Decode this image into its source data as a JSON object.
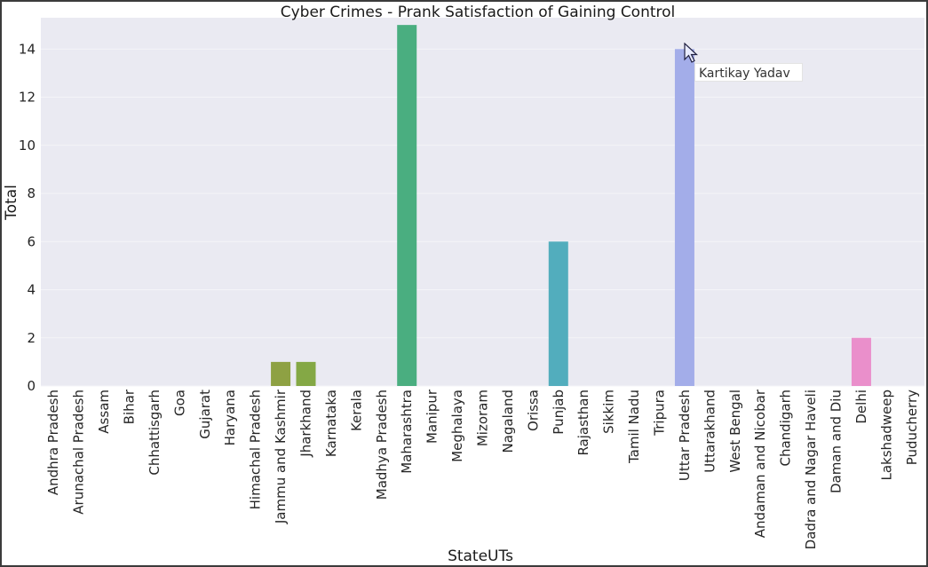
{
  "chart_data": {
    "type": "bar",
    "title": "Cyber Crimes - Prank Satisfaction of Gaining Control",
    "xlabel": "StateUTs",
    "ylabel": "Total",
    "ylim": [
      0,
      15.3
    ],
    "yticks": [
      0,
      2,
      4,
      6,
      8,
      10,
      12,
      14
    ],
    "grid": true,
    "categories": [
      "Andhra Pradesh",
      "Arunachal Pradesh",
      "Assam",
      "Bihar",
      "Chhattisgarh",
      "Goa",
      "Gujarat",
      "Haryana",
      "Himachal Pradesh",
      "Jammu and Kashmir",
      "Jharkhand",
      "Karnataka",
      "Kerala",
      "Madhya Pradesh",
      "Maharashtra",
      "Manipur",
      "Meghalaya",
      "Mizoram",
      "Nagaland",
      "Orissa",
      "Punjab",
      "Rajasthan",
      "Sikkim",
      "Tamil Nadu",
      "Tripura",
      "Uttar Pradesh",
      "Uttarakhand",
      "West Bengal",
      "Andaman and Nicobar",
      "Chandigarh",
      "Dadra and Nagar Haveli",
      "Daman and Diu",
      "Delhi",
      "Lakshadweep",
      "Puducherry"
    ],
    "values": [
      0,
      0,
      0,
      0,
      0,
      0,
      0,
      0,
      0,
      1,
      1,
      0,
      0,
      0,
      15,
      0,
      0,
      0,
      0,
      0,
      6,
      0,
      0,
      0,
      0,
      14,
      0,
      0,
      0,
      0,
      0,
      0,
      2,
      0,
      0
    ],
    "colors": {
      "Jammu and Kashmir": "#8ea143",
      "Jharkhand": "#84a845",
      "Maharashtra": "#4aae80",
      "Punjab": "#52adbd",
      "Uttar Pradesh": "#a3ade9",
      "Delhi": "#ea8fcb"
    },
    "background": "#eaeaf2",
    "gridline_color": "#f4f4f8"
  },
  "overlay": {
    "tooltip_text": "Kartikay Yadav",
    "cursor_icon": "mouse-pointer-icon"
  }
}
